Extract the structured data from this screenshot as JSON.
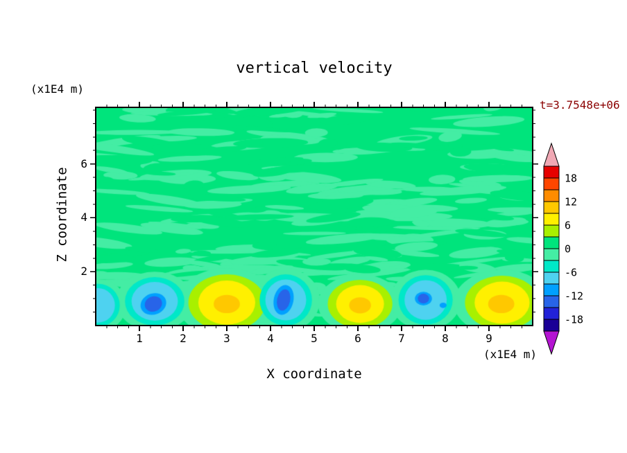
{
  "chart_data": {
    "type": "contour",
    "title": "vertical velocity",
    "time_label": "t=3.7548e+06",
    "time_label_color": "#8b0000",
    "x_axis": {
      "title": "X coordinate",
      "units": "(x1E4 m)",
      "min": 0,
      "max": 10,
      "major_ticks": [
        1,
        2,
        3,
        4,
        5,
        6,
        7,
        8,
        9
      ],
      "minor_step": 0.25
    },
    "z_axis": {
      "title": "Z coordinate",
      "units": "(x1E4 m)",
      "min": 0,
      "max": 8.1,
      "major_ticks": [
        2,
        4,
        6
      ],
      "minor_step": 0.5
    },
    "contour_interval": 3,
    "colorbar": {
      "levels": [
        -21,
        -18,
        -15,
        -12,
        -9,
        -6,
        -3,
        0,
        3,
        6,
        9,
        12,
        15,
        18,
        21
      ],
      "colors": [
        "#1a0096",
        "#2222d8",
        "#2864e8",
        "#00a0ff",
        "#4ed2f0",
        "#00e8c8",
        "#44eda4",
        "#00e47c",
        "#a8f000",
        "#fff000",
        "#ffc800",
        "#ff8c00",
        "#ff4600",
        "#e60000"
      ],
      "labels": [
        18,
        12,
        6,
        0,
        -6,
        -12,
        -18
      ],
      "over_color": "#f0a8b4",
      "under_color": "#b414d2"
    },
    "background_level": [
      0,
      3
    ],
    "texture": {
      "seed": 42,
      "light_streaks": 150,
      "cut_streaks": 70,
      "deep_light": 30,
      "deep_cut": 15
    },
    "features": [
      {
        "type": "downdraft",
        "x": 0.05,
        "z": 0.75,
        "rx": 0.5,
        "ry": 0.8,
        "peak_level": -9
      },
      {
        "type": "downdraft",
        "x": 1.35,
        "z": 0.9,
        "rx": 0.68,
        "ry": 0.9,
        "peak_level": -15,
        "core": {
          "x": 1.32,
          "z": 0.8,
          "rx": 0.2,
          "ry": 0.28,
          "rot": -20
        }
      },
      {
        "type": "updraft",
        "x": 3.0,
        "z": 0.85,
        "rx": 0.88,
        "ry": 1.05,
        "peak_level": 12,
        "core": {
          "x": 3.0,
          "z": 0.8,
          "rx": 0.3,
          "ry": 0.34,
          "rot": 0
        }
      },
      {
        "type": "downdraft",
        "x": 4.35,
        "z": 0.95,
        "rx": 0.6,
        "ry": 0.95,
        "peak_level": -15,
        "core": {
          "x": 4.3,
          "z": 0.95,
          "rx": 0.15,
          "ry": 0.4,
          "rot": 12
        }
      },
      {
        "type": "updraft",
        "x": 6.05,
        "z": 0.8,
        "rx": 0.74,
        "ry": 0.9,
        "peak_level": 12,
        "core": {
          "x": 6.05,
          "z": 0.75,
          "rx": 0.25,
          "ry": 0.3,
          "rot": 0
        }
      },
      {
        "type": "downdraft",
        "x": 7.55,
        "z": 0.95,
        "rx": 0.62,
        "ry": 0.92,
        "peak_level": -15,
        "core": {
          "x": 7.5,
          "z": 1.0,
          "rx": 0.13,
          "ry": 0.18,
          "rot": 0
        },
        "core2": {
          "x": 7.95,
          "z": 0.75,
          "rx": 0.08,
          "ry": 0.1,
          "rot": 0
        }
      },
      {
        "type": "updraft",
        "x": 9.3,
        "z": 0.85,
        "rx": 0.85,
        "ry": 1.0,
        "peak_level": 12,
        "core": {
          "x": 9.28,
          "z": 0.8,
          "rx": 0.3,
          "ry": 0.34,
          "rot": 0
        }
      }
    ]
  }
}
